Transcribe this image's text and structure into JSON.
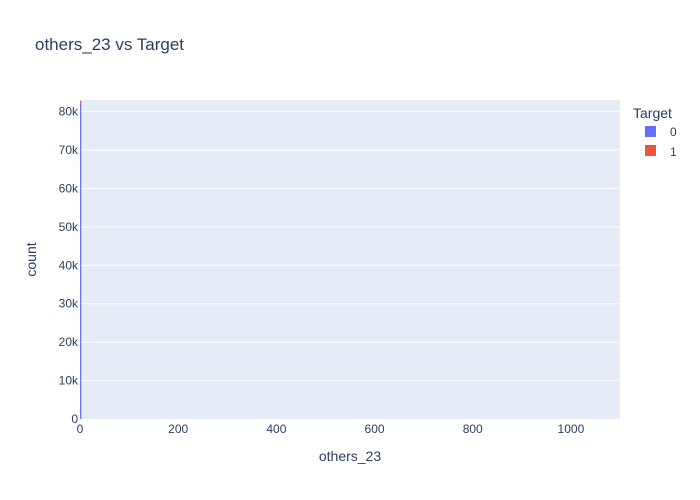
{
  "chart_data": {
    "type": "bar",
    "title": "others_23 vs Target",
    "xlabel": "others_23",
    "ylabel": "count",
    "xlim": [
      0,
      1100
    ],
    "ylim": [
      0,
      83000
    ],
    "x_ticks": [
      0,
      200,
      400,
      600,
      800,
      1000
    ],
    "y_ticks": [
      0,
      10000,
      20000,
      30000,
      40000,
      50000,
      60000,
      70000,
      80000
    ],
    "y_tick_labels": [
      "0",
      "10k",
      "20k",
      "30k",
      "40k",
      "50k",
      "60k",
      "70k",
      "80k"
    ],
    "grid": true,
    "legend": {
      "title": "Target",
      "placement": "top-right",
      "entries": [
        {
          "label": "0",
          "color": "#636efa"
        },
        {
          "label": "1",
          "color": "#ef553b"
        }
      ]
    },
    "series": [
      {
        "name": "0",
        "color": "#636efa",
        "x": [
          0
        ],
        "values": [
          82000
        ]
      },
      {
        "name": "1",
        "color": "#ef553b",
        "x": [
          0
        ],
        "values": [
          800
        ]
      }
    ]
  },
  "colors": {
    "plot_background": "#e5ecf6",
    "gridline": "#ffffff",
    "text": "#2a3f5f"
  }
}
